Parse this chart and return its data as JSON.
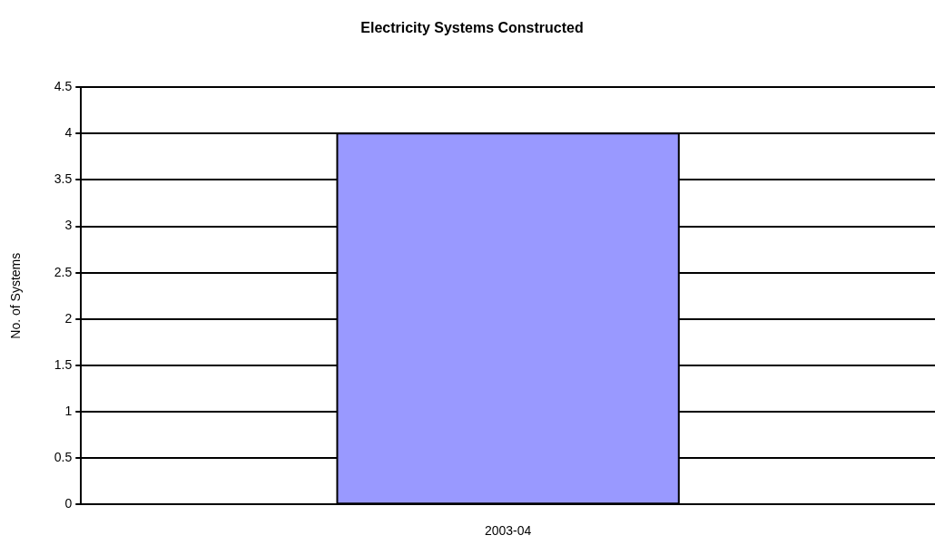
{
  "chart_data": {
    "type": "bar",
    "title": "Electricity Systems Constructed",
    "ylabel": "No. of Systems",
    "categories": [
      "2003-04"
    ],
    "values": [
      4
    ],
    "color": "#9999ff",
    "ylim": [
      0,
      4.5
    ],
    "yticks": [
      0,
      0.5,
      1,
      1.5,
      2,
      2.5,
      3,
      3.5,
      4,
      4.5
    ],
    "grid": "y",
    "legend": false
  }
}
